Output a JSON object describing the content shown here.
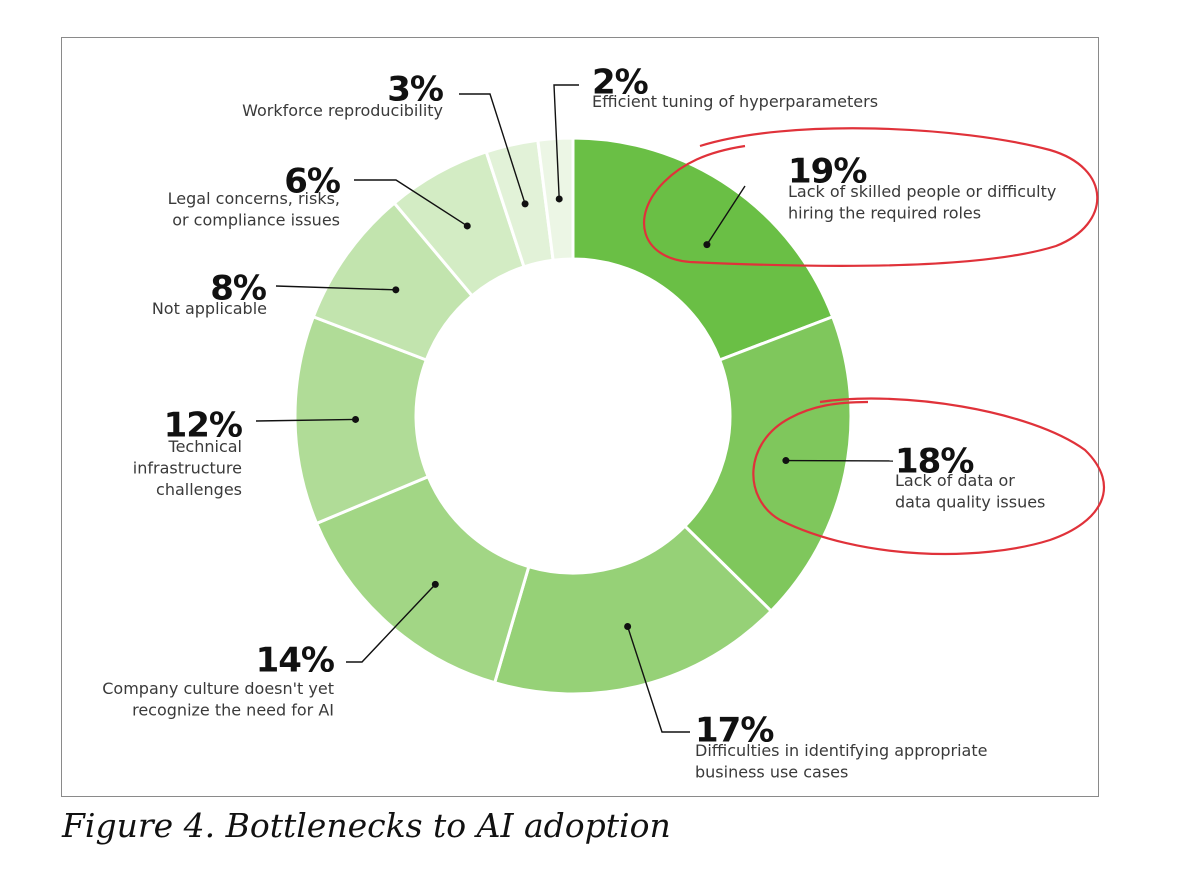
{
  "caption": "Figure 4. Bottlenecks to AI adoption",
  "chart_data": {
    "type": "pie",
    "variant": "donut",
    "title": "",
    "slices": [
      {
        "value": 19,
        "pct_label": "19%",
        "label_lines": [
          "Lack of skilled people or difficulty",
          "hiring the required roles"
        ],
        "color": "#6abf45"
      },
      {
        "value": 18,
        "pct_label": "18%",
        "label_lines": [
          "Lack of data or",
          "data quality issues"
        ],
        "color": "#7fc75c"
      },
      {
        "value": 17,
        "pct_label": "17%",
        "label_lines": [
          "Difficulties in identifying appropriate",
          "business use cases"
        ],
        "color": "#96d177"
      },
      {
        "value": 14,
        "pct_label": "14%",
        "label_lines": [
          "Company culture doesn't yet",
          "recognize the need for AI"
        ],
        "color": "#a2d685"
      },
      {
        "value": 12,
        "pct_label": "12%",
        "label_lines": [
          "Technical",
          "infrastructure",
          "challenges"
        ],
        "color": "#b0dc97"
      },
      {
        "value": 8,
        "pct_label": "8%",
        "label_lines": [
          "Not applicable"
        ],
        "color": "#c2e4ae"
      },
      {
        "value": 6,
        "pct_label": "6%",
        "label_lines": [
          "Legal concerns, risks,",
          "or compliance issues"
        ],
        "color": "#d3ecc4"
      },
      {
        "value": 3,
        "pct_label": "3%",
        "label_lines": [
          "Workforce reproducibility"
        ],
        "color": "#e2f2d8"
      },
      {
        "value": 2,
        "pct_label": "2%",
        "label_lines": [
          "Efficient tuning of hyperparameters"
        ],
        "color": "#ecf6e5"
      }
    ],
    "highlighted": [
      "19%",
      "18%"
    ],
    "highlight_color": "#e0323a"
  }
}
